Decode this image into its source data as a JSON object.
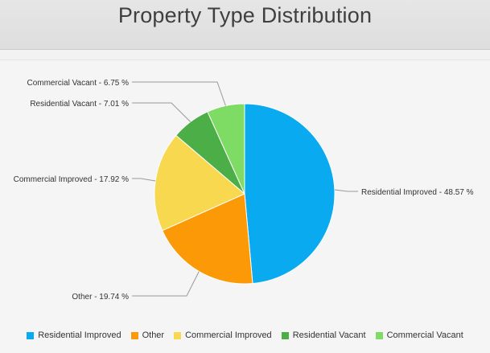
{
  "header": {
    "title": "Property Type Distribution"
  },
  "chart_data": {
    "type": "pie",
    "title": "Property Type Distribution",
    "unit": "%",
    "slices": [
      {
        "name": "Residential Improved",
        "value": 48.57,
        "color": "#0aaaf0",
        "label": "Residential Improved - 48.57 %"
      },
      {
        "name": "Other",
        "value": 19.74,
        "color": "#fb9a06",
        "label": "Other - 19.74 %"
      },
      {
        "name": "Commercial Improved",
        "value": 17.92,
        "color": "#f7d84f",
        "label": "Commercial Improved - 17.92 %"
      },
      {
        "name": "Residential Vacant",
        "value": 7.01,
        "color": "#4bae47",
        "label": "Residential Vacant - 7.01 %"
      },
      {
        "name": "Commercial Vacant",
        "value": 6.75,
        "color": "#7edb63",
        "label": "Commercial Vacant - 6.75 %"
      }
    ],
    "legend_position": "bottom",
    "grid": false
  }
}
